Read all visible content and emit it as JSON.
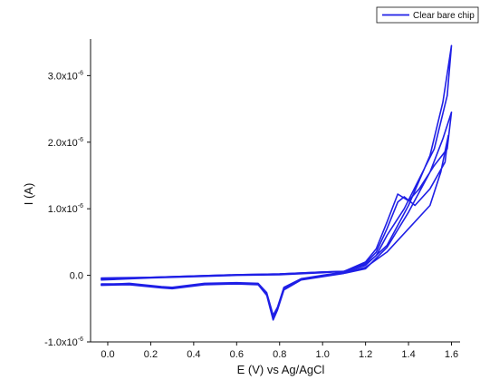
{
  "chart_data": {
    "type": "line",
    "xlabel": "E (V) vs Ag/AgCl",
    "ylabel": "I (A)",
    "xlim": [
      -0.08,
      1.64
    ],
    "ylim": [
      -1e-06,
      3.55e-06
    ],
    "xticks": [
      {
        "value": 0.0,
        "label": "0.0"
      },
      {
        "value": 0.2,
        "label": "0.2"
      },
      {
        "value": 0.4,
        "label": "0.4"
      },
      {
        "value": 0.6,
        "label": "0.6"
      },
      {
        "value": 0.8,
        "label": "0.8"
      },
      {
        "value": 1.0,
        "label": "1.0"
      },
      {
        "value": 1.2,
        "label": "1.2"
      },
      {
        "value": 1.4,
        "label": "1.4"
      },
      {
        "value": 1.6,
        "label": "1.6"
      }
    ],
    "yticks": [
      {
        "value": -1e-06,
        "mantissa": "-1.0x10",
        "exp": "-6"
      },
      {
        "value": 0.0,
        "mantissa": "0.0",
        "exp": ""
      },
      {
        "value": 1e-06,
        "mantissa": "1.0x10",
        "exp": "-6"
      },
      {
        "value": 2e-06,
        "mantissa": "2.0x10",
        "exp": "-6"
      },
      {
        "value": 3e-06,
        "mantissa": "3.0x10",
        "exp": "-6"
      }
    ],
    "grid": false,
    "legend_position": "top-right",
    "series": [
      {
        "name": "Clear bare chip",
        "color": "#1f1fe6",
        "cycles": [
          [
            [
              -0.03,
              -1.3e-07
            ],
            [
              0.1,
              -1.3e-07
            ],
            [
              0.25,
              -1.8e-07
            ],
            [
              0.3,
              -1.9e-07
            ],
            [
              0.45,
              -1.3e-07
            ],
            [
              0.6,
              -1.2e-07
            ],
            [
              0.7,
              -1.3e-07
            ],
            [
              0.74,
              -2.8e-07
            ],
            [
              0.77,
              -6.3e-07
            ],
            [
              0.79,
              -5e-07
            ],
            [
              0.82,
              -2e-07
            ],
            [
              0.9,
              -6e-08
            ],
            [
              1.0,
              -1e-08
            ],
            [
              1.1,
              4e-08
            ],
            [
              1.2,
              1.2e-07
            ],
            [
              1.3,
              3.5e-07
            ],
            [
              1.4,
              7e-07
            ],
            [
              1.5,
              1.05e-06
            ],
            [
              1.55,
              1.55e-06
            ],
            [
              1.585,
              2.1e-06
            ],
            [
              1.57,
              1.7e-06
            ],
            [
              1.5,
              1.3e-06
            ],
            [
              1.43,
              1.05e-06
            ],
            [
              1.38,
              1.18e-06
            ],
            [
              1.35,
              1.1e-06
            ],
            [
              1.3,
              7e-07
            ],
            [
              1.25,
              3.5e-07
            ],
            [
              1.2,
              1.8e-07
            ],
            [
              1.1,
              6e-08
            ],
            [
              1.0,
              5e-08
            ],
            [
              0.8,
              2e-08
            ],
            [
              0.6,
              1e-08
            ],
            [
              0.4,
              -1e-08
            ],
            [
              0.2,
              -3e-08
            ],
            [
              -0.03,
              -5e-08
            ]
          ],
          [
            [
              -0.03,
              -1.5e-07
            ],
            [
              0.1,
              -1.4e-07
            ],
            [
              0.25,
              -1.9e-07
            ],
            [
              0.3,
              -2e-07
            ],
            [
              0.45,
              -1.4e-07
            ],
            [
              0.6,
              -1.3e-07
            ],
            [
              0.7,
              -1.4e-07
            ],
            [
              0.74,
              -3e-07
            ],
            [
              0.77,
              -6.7e-07
            ],
            [
              0.79,
              -5.2e-07
            ],
            [
              0.82,
              -2.2e-07
            ],
            [
              0.9,
              -7e-08
            ],
            [
              1.0,
              -2e-08
            ],
            [
              1.1,
              3e-08
            ],
            [
              1.2,
              1e-07
            ],
            [
              1.3,
              4.2e-07
            ],
            [
              1.4,
              9.5e-07
            ],
            [
              1.5,
              1.55e-06
            ],
            [
              1.56,
              2.05e-06
            ],
            [
              1.6,
              2.45e-06
            ],
            [
              1.58,
              1.9e-06
            ],
            [
              1.52,
              1.65e-06
            ],
            [
              1.45,
              1.3e-06
            ],
            [
              1.4,
              1.12e-06
            ],
            [
              1.35,
              1.22e-06
            ],
            [
              1.3,
              8e-07
            ],
            [
              1.25,
              4e-07
            ],
            [
              1.2,
              2e-07
            ],
            [
              1.1,
              6e-08
            ],
            [
              1.0,
              4e-08
            ],
            [
              0.8,
              1e-08
            ],
            [
              0.6,
              0.0
            ],
            [
              0.4,
              -2e-08
            ],
            [
              0.2,
              -4e-08
            ],
            [
              -0.03,
              -7e-08
            ]
          ],
          [
            [
              -0.03,
              -1.4e-07
            ],
            [
              0.1,
              -1.2e-07
            ],
            [
              0.25,
              -1.7e-07
            ],
            [
              0.3,
              -1.8e-07
            ],
            [
              0.45,
              -1.2e-07
            ],
            [
              0.6,
              -1.1e-07
            ],
            [
              0.7,
              -1.2e-07
            ],
            [
              0.74,
              -2.6e-07
            ],
            [
              0.77,
              -6e-07
            ],
            [
              0.79,
              -4.8e-07
            ],
            [
              0.82,
              -1.8e-07
            ],
            [
              0.9,
              -5e-08
            ],
            [
              1.0,
              0.0
            ],
            [
              1.1,
              5e-08
            ],
            [
              1.2,
              1.5e-07
            ],
            [
              1.3,
              4.5e-07
            ],
            [
              1.4,
              1.05e-06
            ],
            [
              1.5,
              1.8e-06
            ],
            [
              1.56,
              2.6e-06
            ],
            [
              1.6,
              3.45e-06
            ],
            [
              1.58,
              2.7e-06
            ],
            [
              1.52,
              1.9e-06
            ],
            [
              1.45,
              1.45e-06
            ],
            [
              1.38,
              1e-06
            ],
            [
              1.3,
              6e-07
            ],
            [
              1.25,
              3e-07
            ],
            [
              1.2,
              1.6e-07
            ],
            [
              1.1,
              6e-08
            ],
            [
              1.0,
              5e-08
            ],
            [
              0.8,
              2e-08
            ],
            [
              0.6,
              1e-08
            ],
            [
              0.4,
              -1e-08
            ],
            [
              0.2,
              -3e-08
            ],
            [
              -0.03,
              -4e-08
            ]
          ]
        ]
      }
    ]
  }
}
